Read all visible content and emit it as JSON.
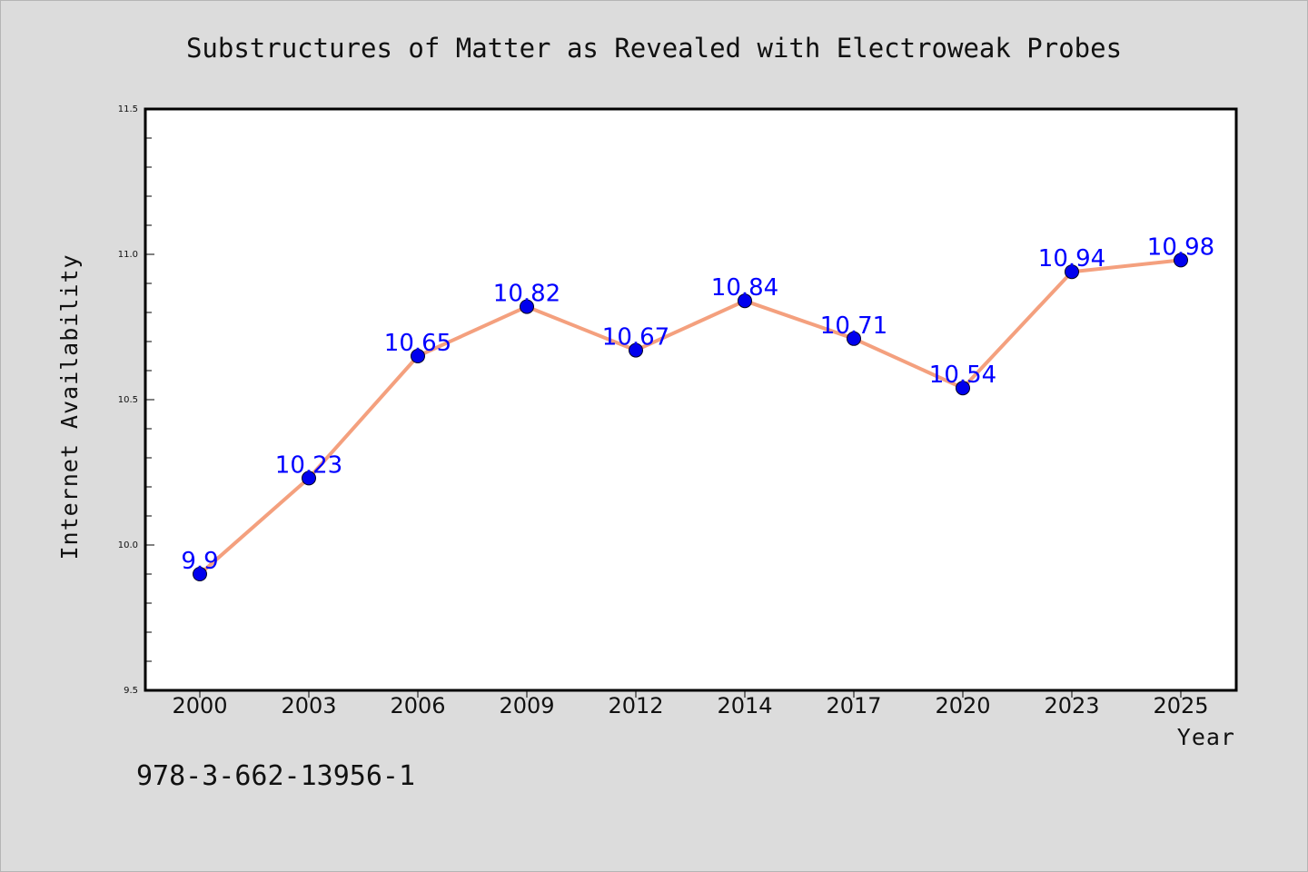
{
  "chart_data": {
    "type": "line",
    "title": "Substructures of Matter as Revealed with Electroweak Probes",
    "xlabel": "Year",
    "ylabel": "Internet Availability",
    "categories": [
      "2000",
      "2003",
      "2006",
      "2009",
      "2012",
      "2014",
      "2017",
      "2020",
      "2023",
      "2025"
    ],
    "series": [
      {
        "values": [
          9.9,
          10.23,
          10.65,
          10.82,
          10.67,
          10.84,
          10.71,
          10.54,
          10.94,
          10.98
        ],
        "data_labels": [
          "9.9",
          "10.23",
          "10.65",
          "10.82",
          "10.67",
          "10.84",
          "10.71",
          "10.54",
          "10.94",
          "10.98"
        ],
        "line_color": "#f4a07e",
        "marker_color": "#0000ee"
      }
    ],
    "ylim": [
      9.5,
      11.5
    ],
    "yticks": [
      "9.5",
      "10.0",
      "10.5",
      "11.0",
      "11.5"
    ],
    "grid": false,
    "legend": "none",
    "label_color": "#0000ff"
  },
  "footer": {
    "code": "978-3-662-13956-1"
  }
}
